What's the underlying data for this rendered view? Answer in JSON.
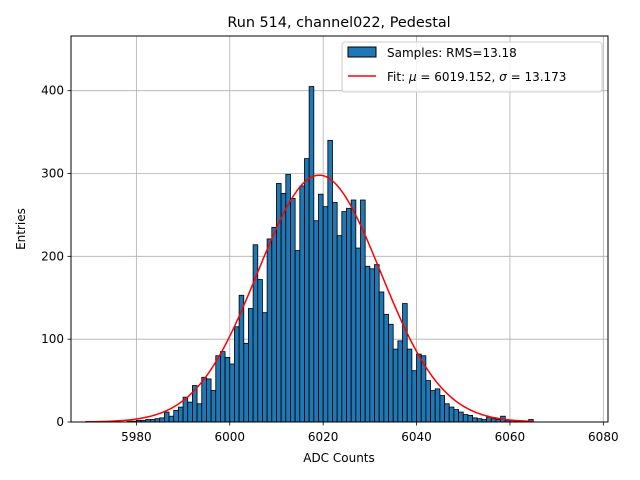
{
  "chart_data": {
    "type": "bar",
    "title": "Run 514, channel022, Pedestal",
    "xlabel": "ADC Counts",
    "ylabel": "Entries",
    "xlim": [
      5966,
      6081
    ],
    "ylim": [
      0,
      466
    ],
    "grid": true,
    "legend_position": "top-right",
    "xticks": [
      5980,
      6000,
      6020,
      6040,
      6060,
      6080
    ],
    "yticks": [
      0,
      100,
      200,
      300,
      400
    ],
    "bin_width": 1,
    "bins": {
      "left_edges": [
        5978,
        5979,
        5980,
        5981,
        5982,
        5983,
        5984,
        5985,
        5986,
        5987,
        5988,
        5989,
        5990,
        5991,
        5992,
        5993,
        5994,
        5995,
        5996,
        5997,
        5998,
        5999,
        6000,
        6001,
        6002,
        6003,
        6004,
        6005,
        6006,
        6007,
        6008,
        6009,
        6010,
        6011,
        6012,
        6013,
        6014,
        6015,
        6016,
        6017,
        6018,
        6019,
        6020,
        6021,
        6022,
        6023,
        6024,
        6025,
        6026,
        6027,
        6028,
        6029,
        6030,
        6031,
        6032,
        6033,
        6034,
        6035,
        6036,
        6037,
        6038,
        6039,
        6040,
        6041,
        6042,
        6043,
        6044,
        6045,
        6046,
        6047,
        6048,
        6049,
        6050,
        6051,
        6052,
        6053,
        6054,
        6055,
        6056,
        6057,
        6058,
        6059,
        6060,
        6061,
        6062,
        6063,
        6064
      ],
      "counts": [
        1,
        1,
        2,
        2,
        3,
        3,
        4,
        5,
        12,
        7,
        14,
        18,
        30,
        24,
        44,
        22,
        54,
        52,
        38,
        80,
        85,
        78,
        70,
        115,
        153,
        95,
        137,
        214,
        172,
        132,
        221,
        235,
        288,
        276,
        299,
        270,
        207,
        285,
        318,
        405,
        243,
        275,
        260,
        340,
        265,
        225,
        254,
        258,
        268,
        210,
        268,
        188,
        185,
        190,
        157,
        130,
        118,
        88,
        98,
        143,
        88,
        62,
        82,
        80,
        50,
        38,
        40,
        32,
        22,
        18,
        15,
        12,
        9,
        8,
        5,
        4,
        3,
        6,
        4,
        3,
        7,
        2,
        2,
        1,
        1,
        1,
        3
      ]
    },
    "series": [
      {
        "name": "Samples: RMS=13.18",
        "type": "histogram",
        "color": "#1f77b4",
        "edgecolor": "#000000"
      },
      {
        "name": "Fit: μ = 6019.152, σ = 13.173",
        "type": "line",
        "color": "#ff0000",
        "mu": 6019.152,
        "sigma": 13.173,
        "amplitude": 298,
        "x_range": [
          5969,
          6065
        ]
      }
    ],
    "legend": {
      "samples_prefix": "Samples: RMS=13.18",
      "fit_prefix": "Fit: ",
      "fit_mu_symbol": "μ",
      "fit_mu_text": " = 6019.152, ",
      "fit_sigma_symbol": "σ",
      "fit_sigma_text": " = 13.173"
    }
  }
}
